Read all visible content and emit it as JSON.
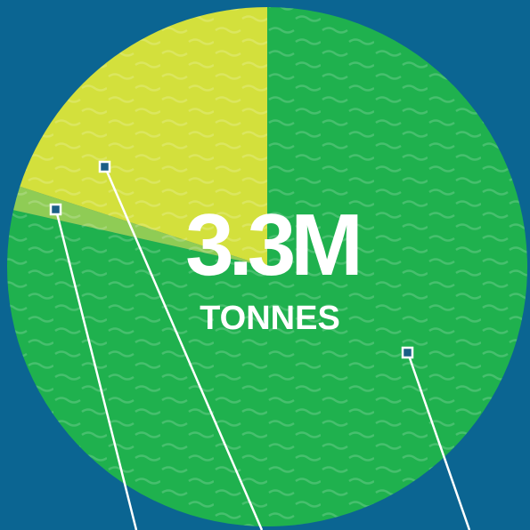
{
  "chart_data": {
    "type": "pie",
    "title": "3.3M",
    "subtitle": "TONNES",
    "categories": [
      null,
      null,
      null
    ],
    "values": [
      78.5,
      1.5,
      20
    ],
    "colors": [
      "#1fb14e",
      "#8fcc55",
      "#d3e03c"
    ]
  }
}
